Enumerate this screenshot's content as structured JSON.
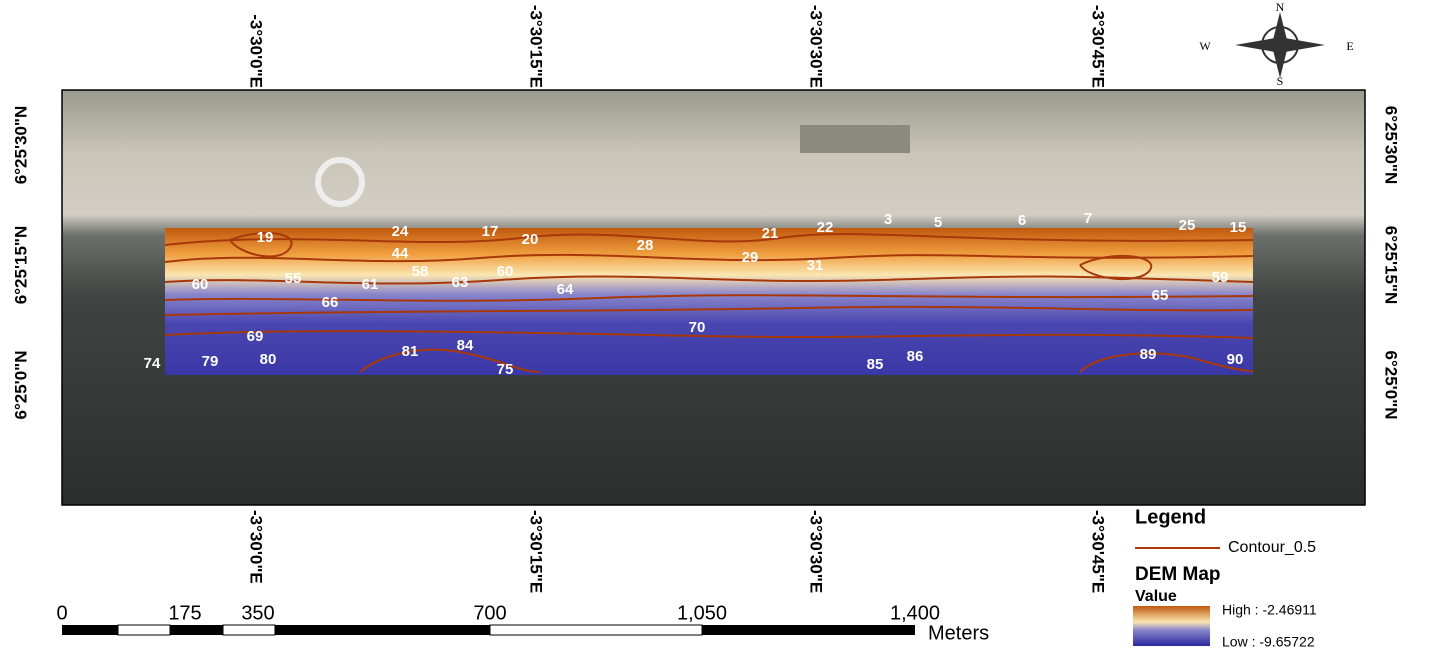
{
  "top_labels": [
    "-3°30'0\"E",
    "-3°30'15\"E",
    "-3°30'30\"E",
    "-3°30'45\"E"
  ],
  "bottom_labels": [
    "-3°30'0\"E",
    "-3°30'15\"E",
    "-3°30'30\"E",
    "-3°30'45\"E"
  ],
  "left_labels": [
    "6°25'30\"N",
    "6°25'15\"N",
    "6°25'0\"N"
  ],
  "right_labels": [
    "6°25'30\"N",
    "6°25'15\"N",
    "6°25'0\"N"
  ],
  "compass": {
    "n": "N",
    "s": "S",
    "e": "E",
    "w": "W"
  },
  "contour_labels": [
    "19",
    "24",
    "17",
    "20",
    "28",
    "21",
    "22",
    "3",
    "5",
    "6",
    "7",
    "25",
    "15",
    "29",
    "31",
    "44",
    "55",
    "58",
    "60",
    "61",
    "60",
    "63",
    "64",
    "66",
    "65",
    "59",
    "70",
    "69",
    "80",
    "79",
    "74",
    "81",
    "84",
    "75",
    "85",
    "86",
    "89",
    "90"
  ],
  "legend": {
    "title": "Legend",
    "contour": "Contour_0.5",
    "layer": "DEM Map",
    "field": "Value",
    "high": "High : -2.46911",
    "low": "Low : -9.65722"
  },
  "scale_bar": {
    "labels": [
      "0",
      "175",
      "350",
      "700",
      "1,050",
      "1,400"
    ],
    "unit": "Meters"
  }
}
